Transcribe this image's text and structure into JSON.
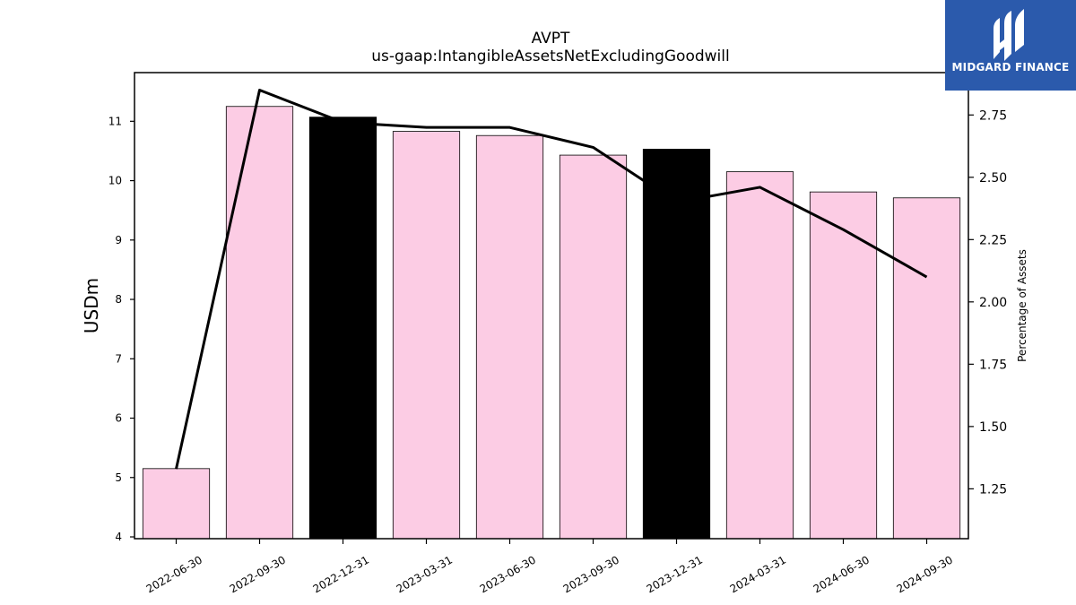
{
  "chart_data": {
    "type": "bar",
    "title": "AVPT",
    "subtitle": "us-gaap:IntangibleAssetsNetExcludingGoodwill",
    "ylabel": "USDm",
    "ylabel_right": "Percentage of Assets",
    "categories": [
      "2022-06-30",
      "2022-09-30",
      "2022-12-31",
      "2023-03-31",
      "2023-06-30",
      "2023-09-30",
      "2023-12-31",
      "2024-03-31",
      "2024-06-30",
      "2024-09-30"
    ],
    "series": [
      {
        "type": "bar",
        "axis": "left",
        "values": [
          5.15,
          11.25,
          11.07,
          10.83,
          10.76,
          10.43,
          10.53,
          10.15,
          9.81,
          9.71
        ],
        "colors": [
          "#fccce4",
          "#fccce4",
          "#000000",
          "#fccce4",
          "#fccce4",
          "#fccce4",
          "#000000",
          "#fccce4",
          "#fccce4",
          "#fccce4"
        ]
      },
      {
        "type": "line",
        "axis": "right",
        "color": "#000000",
        "values": [
          1.33,
          2.85,
          2.72,
          2.7,
          2.7,
          2.62,
          2.4,
          2.46,
          2.29,
          2.1
        ]
      }
    ],
    "ylim": [
      3.97,
      11.82
    ],
    "yticks": [
      "4",
      "5",
      "6",
      "7",
      "8",
      "9",
      "10",
      "11"
    ],
    "ylim_right": [
      1.05,
      2.92
    ],
    "yticks_right": [
      "1.25",
      "1.50",
      "1.75",
      "2.00",
      "2.25",
      "2.50",
      "2.75"
    ],
    "grid": false,
    "legend": "none"
  },
  "logo": {
    "text": "MIDGARD FINANCE",
    "icon": "midgard-logo-icon",
    "background": "#2b5aac"
  }
}
